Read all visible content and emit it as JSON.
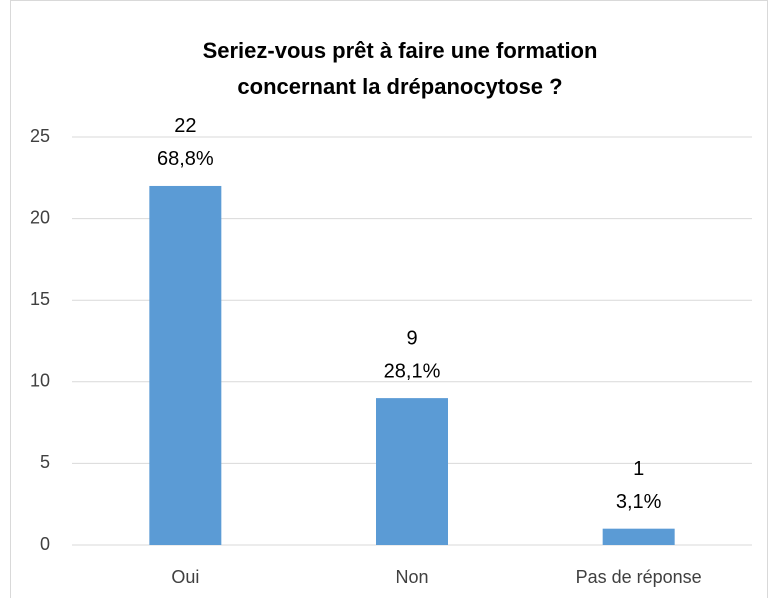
{
  "chart_data": {
    "type": "bar",
    "title": [
      "Seriez-vous prêt à faire une formation",
      "concernant la drépanocytose ?"
    ],
    "categories": [
      "Oui",
      "Non",
      "Pas de réponse"
    ],
    "values": [
      22,
      9,
      1
    ],
    "percent_labels": [
      "68,8%",
      "28,1%",
      "3,1%"
    ],
    "color": "#5b9bd5",
    "ylim": [
      0,
      25
    ],
    "yticks": [
      0,
      5,
      10,
      15,
      20,
      25
    ],
    "grid": true
  }
}
